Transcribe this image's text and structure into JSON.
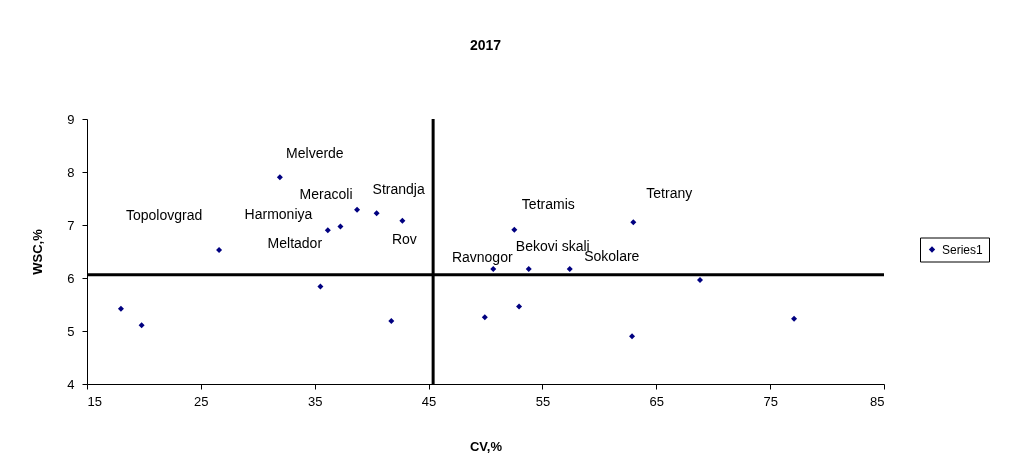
{
  "chart_data": {
    "type": "scatter",
    "title": "2017",
    "xlabel": "CV,%",
    "ylabel": "WSC,%",
    "x": [
      31.94,
      26.6,
      36.15,
      37.26,
      38.72,
      40.44,
      42.7,
      35.5,
      17.98,
      19.8,
      41.73,
      50.68,
      52.53,
      53.8,
      57.4,
      62.98,
      68.84,
      49.94,
      52.95,
      62.87,
      77.1
    ],
    "series": [
      {
        "name": "Series1",
        "color": "#000080",
        "values": [
          7.9,
          6.53,
          6.9,
          6.97,
          7.29,
          7.22,
          7.08,
          5.84,
          5.42,
          5.11,
          5.19,
          6.17,
          6.91,
          6.17,
          6.17,
          7.05,
          5.96,
          5.26,
          5.46,
          4.9,
          5.23
        ]
      }
    ],
    "xlim": [
      15,
      85
    ],
    "xticks": [
      15,
      25,
      35,
      45,
      55,
      65,
      75,
      85
    ],
    "ylim": [
      4,
      9
    ],
    "yticks": [
      4,
      5,
      6,
      7,
      8,
      9
    ],
    "marker": "diamond",
    "legend": "right",
    "grid": false,
    "ref_lines": [
      {
        "axis": "x",
        "value": 45.4,
        "label": null,
        "color": "#000000"
      },
      {
        "axis": "y",
        "value": 6.06,
        "label": null,
        "color": "#000000"
      }
    ],
    "annotations": [
      {
        "text": "Melverde",
        "x": 31.94,
        "y": 7.9
      },
      {
        "text": "Topolovgrad",
        "x": 26.6,
        "y": 6.53
      },
      {
        "text": "Harmoniya",
        "x": 37.26,
        "y": 6.97
      },
      {
        "text": "Meracoli",
        "x": 38.72,
        "y": 7.29
      },
      {
        "text": "Strandja",
        "x": 40.44,
        "y": 7.22
      },
      {
        "text": "Meltador",
        "x": 36.15,
        "y": 6.9
      },
      {
        "text": "Rov",
        "x": 42.7,
        "y": 7.08
      },
      {
        "text": "Ravnogor",
        "x": 50.68,
        "y": 6.17
      },
      {
        "text": "Tetramis",
        "x": 52.53,
        "y": 6.91
      },
      {
        "text": "Bekovi skali",
        "x": 53.8,
        "y": 6.17
      },
      {
        "text": "Sokolare",
        "x": 57.4,
        "y": 6.17
      },
      {
        "text": "Tetrany",
        "x": 62.98,
        "y": 7.05
      }
    ]
  }
}
